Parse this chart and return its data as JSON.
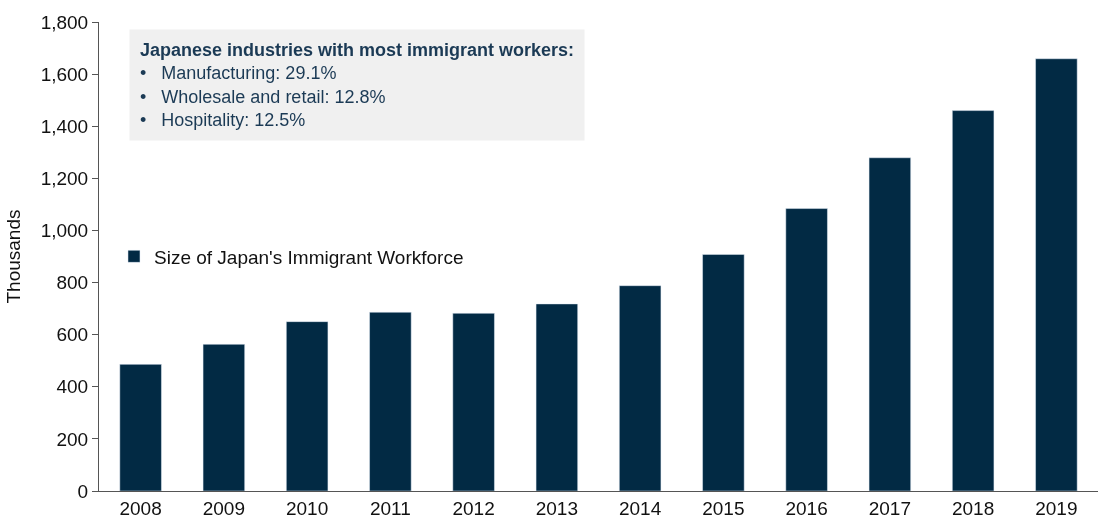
{
  "chart_data": {
    "type": "bar",
    "ylabel": "Thousands",
    "categories": [
      "2008",
      "2009",
      "2010",
      "2011",
      "2012",
      "2013",
      "2014",
      "2015",
      "2016",
      "2017",
      "2018",
      "2019"
    ],
    "series": [
      {
        "name": "Size of Japan's Immigrant Workforce",
        "color": "#022a44",
        "values": [
          486,
          563,
          650,
          686,
          682,
          718,
          788,
          908,
          1084,
          1279,
          1460,
          1659
        ]
      }
    ],
    "ylim": [
      0,
      1800
    ],
    "yticks": [
      0,
      {
        "value": 200,
        "label": "200"
      },
      {
        "value": 400,
        "label": "400"
      },
      {
        "value": 600,
        "label": "600"
      },
      {
        "value": 800,
        "label": "800"
      },
      {
        "value": 1000,
        "label": "1,000"
      },
      {
        "value": 1200,
        "label": "1,200"
      },
      {
        "value": 1400,
        "label": "1,400"
      },
      {
        "value": 1600,
        "label": "1,600"
      },
      {
        "value": 1800,
        "label": "1,800"
      }
    ],
    "annotations": [
      "Japanese industries with most immigrant workers:",
      "•   Manufacturing: 29.1%",
      "•   Wholesale and retail: 12.8%",
      "•   Hospitality: 12.5%"
    ],
    "legend": "left"
  }
}
